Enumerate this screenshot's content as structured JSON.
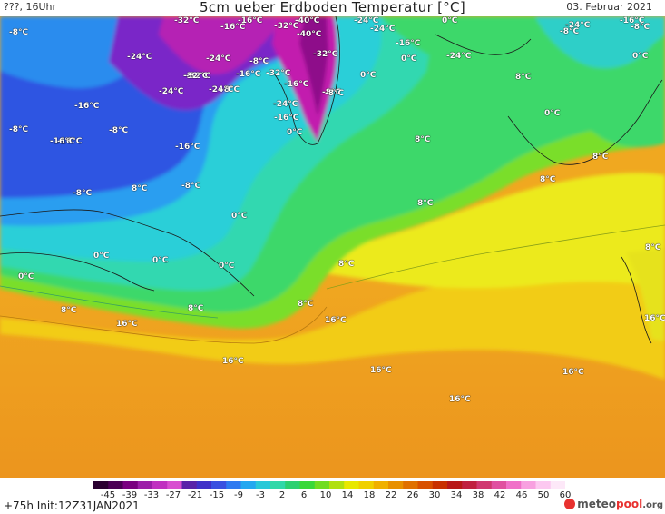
{
  "header": {
    "left": "???, 16Uhr",
    "title": "5cm ueber Erdboden Temperatur [°C]",
    "date": "03. Februar 2021"
  },
  "footer": {
    "lead_time": "+75h Init:12Z31JAN2021",
    "brand": {
      "part1": "meteo",
      "part2": "pool",
      "part3": ".org"
    }
  },
  "colorbar": {
    "ticks": [
      "-45",
      "-39",
      "-33",
      "-27",
      "-21",
      "-15",
      "-9",
      "-3",
      "2",
      "6",
      "10",
      "14",
      "18",
      "22",
      "26",
      "30",
      "34",
      "38",
      "42",
      "46",
      "50",
      "60"
    ],
    "colors": [
      "#2a0030",
      "#4b0054",
      "#7a0080",
      "#9c1ea8",
      "#c030c0",
      "#d84fd0",
      "#5a22a8",
      "#4030c8",
      "#3a50e0",
      "#2f7af0",
      "#22a8f0",
      "#28c8d8",
      "#30d8a8",
      "#2cd070",
      "#38d838",
      "#70dc20",
      "#b0e010",
      "#e8e800",
      "#f0d000",
      "#f0b000",
      "#e89000",
      "#e07000",
      "#d85000",
      "#c83000",
      "#b81818",
      "#c02040",
      "#d03870",
      "#e050a0",
      "#f070c8",
      "#f8a0e0",
      "#fcc8f0",
      "#fde8f8"
    ]
  },
  "legend_colors": {
    "deep_purple": "#5a0f8c",
    "magenta": "#c91cb4",
    "violet": "#7a1fc8",
    "blue": "#2c55e0",
    "light_blue": "#2aa0ee",
    "cyan": "#2fd3d2",
    "teal": "#32d9a6",
    "green": "#2fd36e",
    "lime": "#8fe02a",
    "yellow": "#e6e61a",
    "gold": "#f2c20e",
    "orange": "#f0a51a",
    "deep_orange": "#ee9a22"
  },
  "map_labels": [
    {
      "text": "-8°C"
    },
    {
      "text": "-32°C"
    },
    {
      "text": "-16°C"
    },
    {
      "text": "-40°C"
    },
    {
      "text": "-24°C"
    },
    {
      "text": "-16°C"
    },
    {
      "text": "-32°C"
    },
    {
      "text": "-40°C"
    },
    {
      "text": "-24°C"
    },
    {
      "text": "-16°C"
    },
    {
      "text": "0°C"
    },
    {
      "text": "-24°C"
    },
    {
      "text": "-16°C"
    },
    {
      "text": "-8°C"
    },
    {
      "text": "-8°C"
    },
    {
      "text": "0°C"
    },
    {
      "text": "-24°C"
    },
    {
      "text": "-24°C"
    },
    {
      "text": "-32°C"
    },
    {
      "text": "-8°C"
    },
    {
      "text": "-8°C"
    },
    {
      "text": "0°C"
    },
    {
      "text": "-24°C"
    },
    {
      "text": "-32°C"
    },
    {
      "text": "-16°C"
    },
    {
      "text": "-32°C"
    },
    {
      "text": "-24°C"
    },
    {
      "text": "-24°C"
    },
    {
      "text": "-16°C"
    },
    {
      "text": "-32°C"
    },
    {
      "text": "-24°C"
    },
    {
      "text": "-8°C"
    },
    {
      "text": "0°C"
    },
    {
      "text": "-8°C"
    },
    {
      "text": "-16°C"
    },
    {
      "text": "0°C"
    },
    {
      "text": "8°C"
    },
    {
      "text": "-16°C"
    },
    {
      "text": "-16°C"
    },
    {
      "text": "-8°C"
    },
    {
      "text": "-16°C"
    },
    {
      "text": "-16°C"
    },
    {
      "text": "0°C"
    },
    {
      "text": "8°C"
    },
    {
      "text": "8°C"
    },
    {
      "text": "-8°C"
    },
    {
      "text": "8°C"
    },
    {
      "text": "8°C"
    },
    {
      "text": "-8°C"
    },
    {
      "text": "-8°C"
    },
    {
      "text": "8°C"
    },
    {
      "text": "0°C"
    },
    {
      "text": "0°C"
    },
    {
      "text": "8°C"
    },
    {
      "text": "0°C"
    },
    {
      "text": "0°C"
    },
    {
      "text": "0°C"
    },
    {
      "text": "8°C"
    },
    {
      "text": "8°C"
    },
    {
      "text": "8°C"
    },
    {
      "text": "16°C"
    },
    {
      "text": "8°C"
    },
    {
      "text": "16°C"
    },
    {
      "text": "16°C"
    },
    {
      "text": "16°C"
    },
    {
      "text": "16°C"
    },
    {
      "text": "16°C"
    },
    {
      "text": "16°C"
    }
  ]
}
